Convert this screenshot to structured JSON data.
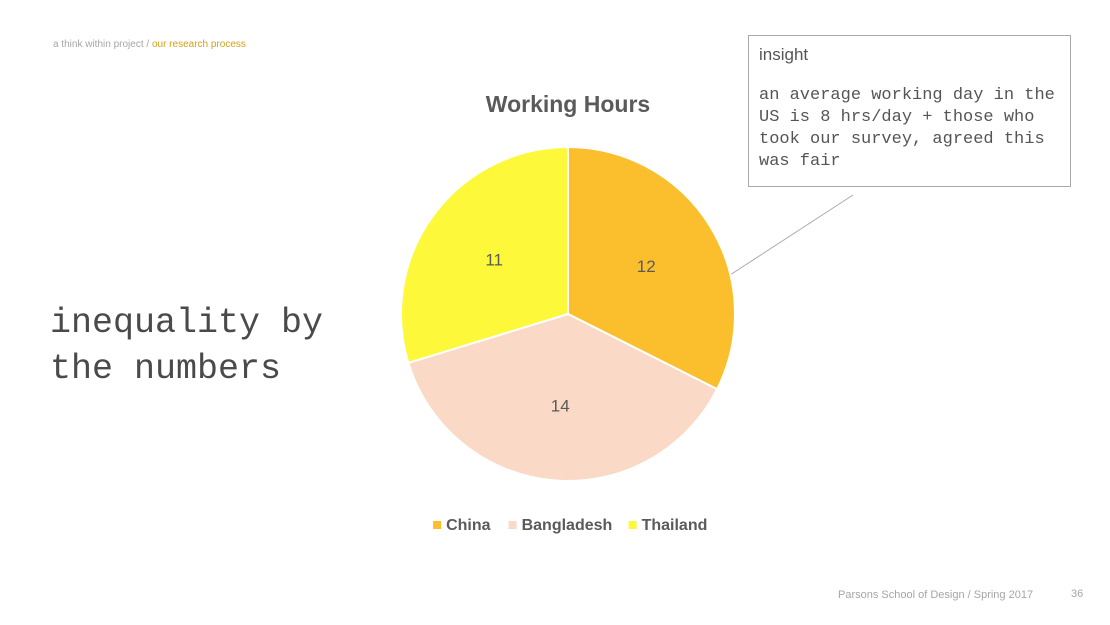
{
  "breadcrumb": {
    "project": "a think within project /",
    "current": "our research process"
  },
  "slide": {
    "title_line1": "inequality by",
    "title_line2": "the numbers"
  },
  "insight": {
    "heading": "insight",
    "body": "an average working day in the US is 8 hrs/day + those who took our survey, agreed this was fair"
  },
  "footer": {
    "credit": "Parsons School of Design / Spring 2017",
    "page_number": "36"
  },
  "chart_data": {
    "type": "pie",
    "title": "Working Hours",
    "categories": [
      "China",
      "Bangladesh",
      "Thailand"
    ],
    "values": [
      12,
      14,
      11
    ],
    "colors": [
      "#fbbf2e",
      "#fad9c6",
      "#fdf93a"
    ],
    "legend_position": "bottom",
    "data_labels": true,
    "start_angle": "12 o'clock, clockwise"
  }
}
